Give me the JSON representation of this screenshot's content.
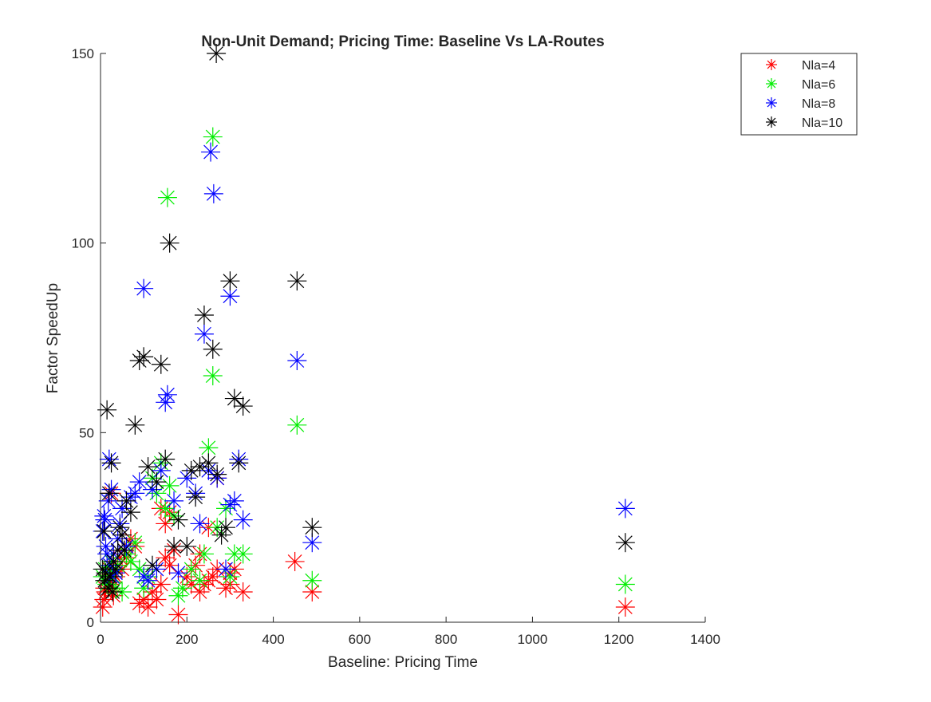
{
  "chart_data": {
    "type": "scatter",
    "title": "Non-Unit Demand; Pricing Time: Baseline Vs LA-Routes",
    "xlabel": "Baseline:  Pricing Time",
    "ylabel": "Factor SpeedUp",
    "xlim": [
      0,
      1400
    ],
    "ylim": [
      0,
      150
    ],
    "xticks": [
      0,
      200,
      400,
      600,
      800,
      1000,
      1200,
      1400
    ],
    "yticks": [
      0,
      50,
      100,
      150
    ],
    "grid": false,
    "legend_position": "top-right",
    "marker": "asterisk",
    "series": [
      {
        "name": "Nla=4",
        "color": "#ff0000",
        "points": [
          [
            5,
            4
          ],
          [
            8,
            6
          ],
          [
            10,
            9
          ],
          [
            12,
            8
          ],
          [
            15,
            11
          ],
          [
            18,
            12
          ],
          [
            20,
            14
          ],
          [
            22,
            10
          ],
          [
            25,
            9
          ],
          [
            28,
            13
          ],
          [
            30,
            7
          ],
          [
            35,
            12
          ],
          [
            40,
            15
          ],
          [
            45,
            17
          ],
          [
            50,
            14
          ],
          [
            55,
            19
          ],
          [
            60,
            17
          ],
          [
            70,
            22
          ],
          [
            80,
            20
          ],
          [
            90,
            5
          ],
          [
            100,
            6
          ],
          [
            110,
            4
          ],
          [
            120,
            8
          ],
          [
            130,
            6
          ],
          [
            140,
            10
          ],
          [
            150,
            17
          ],
          [
            160,
            15
          ],
          [
            170,
            19
          ],
          [
            180,
            2
          ],
          [
            200,
            12
          ],
          [
            210,
            10
          ],
          [
            220,
            15
          ],
          [
            230,
            8
          ],
          [
            240,
            10
          ],
          [
            250,
            11
          ],
          [
            260,
            12
          ],
          [
            270,
            14
          ],
          [
            290,
            9
          ],
          [
            300,
            10
          ],
          [
            310,
            14
          ],
          [
            330,
            8
          ],
          [
            25,
            34
          ],
          [
            140,
            30
          ],
          [
            150,
            26
          ],
          [
            160,
            29
          ],
          [
            230,
            18
          ],
          [
            250,
            25
          ],
          [
            270,
            38
          ],
          [
            300,
            13
          ],
          [
            450,
            16
          ],
          [
            490,
            8
          ],
          [
            1215,
            4
          ]
        ]
      },
      {
        "name": "Nla=6",
        "color": "#00ee00",
        "points": [
          [
            5,
            12
          ],
          [
            10,
            14
          ],
          [
            15,
            10
          ],
          [
            20,
            13
          ],
          [
            25,
            16
          ],
          [
            30,
            12
          ],
          [
            35,
            9
          ],
          [
            40,
            15
          ],
          [
            50,
            8
          ],
          [
            60,
            18
          ],
          [
            70,
            16
          ],
          [
            80,
            21
          ],
          [
            90,
            14
          ],
          [
            100,
            9
          ],
          [
            110,
            12
          ],
          [
            120,
            38
          ],
          [
            130,
            34
          ],
          [
            140,
            42
          ],
          [
            150,
            30
          ],
          [
            160,
            36
          ],
          [
            170,
            28
          ],
          [
            180,
            7
          ],
          [
            190,
            9
          ],
          [
            210,
            14
          ],
          [
            230,
            11
          ],
          [
            240,
            18
          ],
          [
            250,
            46
          ],
          [
            260,
            65
          ],
          [
            270,
            25
          ],
          [
            290,
            30
          ],
          [
            300,
            12
          ],
          [
            310,
            18
          ],
          [
            330,
            18
          ],
          [
            260,
            128
          ],
          [
            155,
            112
          ],
          [
            455,
            52
          ],
          [
            490,
            11
          ],
          [
            1215,
            10
          ]
        ]
      },
      {
        "name": "Nla=8",
        "color": "#0000ff",
        "points": [
          [
            5,
            24
          ],
          [
            8,
            28
          ],
          [
            10,
            27
          ],
          [
            12,
            20
          ],
          [
            15,
            18
          ],
          [
            18,
            32
          ],
          [
            20,
            43
          ],
          [
            22,
            15
          ],
          [
            25,
            35
          ],
          [
            28,
            12
          ],
          [
            30,
            18
          ],
          [
            35,
            13
          ],
          [
            40,
            22
          ],
          [
            45,
            26
          ],
          [
            50,
            30
          ],
          [
            60,
            20
          ],
          [
            70,
            33
          ],
          [
            80,
            34
          ],
          [
            90,
            37
          ],
          [
            100,
            12
          ],
          [
            110,
            11
          ],
          [
            120,
            35
          ],
          [
            130,
            14
          ],
          [
            140,
            40
          ],
          [
            150,
            58
          ],
          [
            155,
            60
          ],
          [
            170,
            32
          ],
          [
            180,
            13
          ],
          [
            200,
            38
          ],
          [
            220,
            34
          ],
          [
            230,
            26
          ],
          [
            240,
            76
          ],
          [
            250,
            40
          ],
          [
            270,
            38
          ],
          [
            290,
            14
          ],
          [
            300,
            31
          ],
          [
            310,
            32
          ],
          [
            320,
            43
          ],
          [
            330,
            27
          ],
          [
            100,
            88
          ],
          [
            255,
            124
          ],
          [
            262,
            113
          ],
          [
            300,
            86
          ],
          [
            455,
            69
          ],
          [
            490,
            21
          ],
          [
            1215,
            30
          ]
        ]
      },
      {
        "name": "Nla=10",
        "color": "#000000",
        "points": [
          [
            5,
            14
          ],
          [
            8,
            24
          ],
          [
            10,
            11
          ],
          [
            12,
            13
          ],
          [
            15,
            56
          ],
          [
            18,
            9
          ],
          [
            20,
            34
          ],
          [
            22,
            12
          ],
          [
            25,
            42
          ],
          [
            28,
            8
          ],
          [
            30,
            16
          ],
          [
            35,
            14
          ],
          [
            40,
            19
          ],
          [
            45,
            25
          ],
          [
            50,
            23
          ],
          [
            55,
            19
          ],
          [
            60,
            32
          ],
          [
            70,
            29
          ],
          [
            80,
            52
          ],
          [
            90,
            69
          ],
          [
            100,
            70
          ],
          [
            110,
            41
          ],
          [
            120,
            15
          ],
          [
            130,
            37
          ],
          [
            140,
            68
          ],
          [
            150,
            43
          ],
          [
            160,
            100
          ],
          [
            170,
            20
          ],
          [
            180,
            27
          ],
          [
            200,
            20
          ],
          [
            210,
            40
          ],
          [
            220,
            33
          ],
          [
            230,
            41
          ],
          [
            240,
            81
          ],
          [
            250,
            42
          ],
          [
            260,
            72
          ],
          [
            270,
            39
          ],
          [
            280,
            23
          ],
          [
            290,
            25
          ],
          [
            300,
            90
          ],
          [
            310,
            59
          ],
          [
            320,
            42
          ],
          [
            330,
            57
          ],
          [
            268,
            150
          ],
          [
            455,
            90
          ],
          [
            490,
            25
          ],
          [
            1215,
            21
          ]
        ]
      }
    ]
  }
}
